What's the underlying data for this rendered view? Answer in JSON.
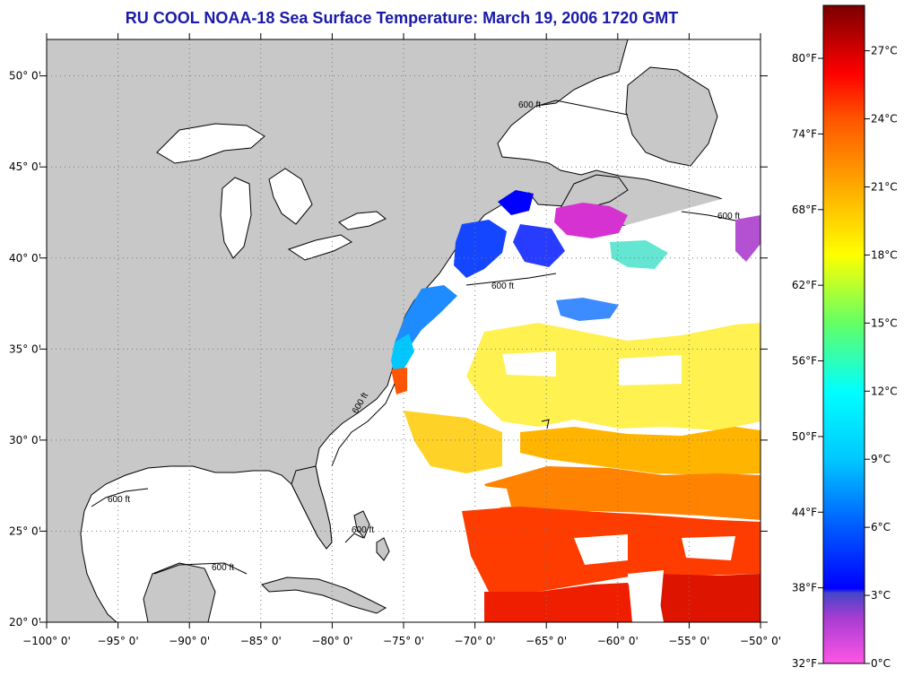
{
  "title": "RU COOL  NOAA-18  Sea Surface Temperature:  March 19, 2006 1720 GMT",
  "map": {
    "lon_range": [
      -100,
      -50
    ],
    "lat_range": [
      20,
      52
    ],
    "lon_ticks": [
      {
        "value": -100,
        "label": "−100° 0'"
      },
      {
        "value": -95,
        "label": "−95° 0'"
      },
      {
        "value": -90,
        "label": "−90° 0'"
      },
      {
        "value": -85,
        "label": "−85° 0'"
      },
      {
        "value": -80,
        "label": "−80° 0'"
      },
      {
        "value": -75,
        "label": "−75° 0'"
      },
      {
        "value": -70,
        "label": "−70° 0'"
      },
      {
        "value": -65,
        "label": "−65° 0'"
      },
      {
        "value": -60,
        "label": "−60° 0'"
      },
      {
        "value": -55,
        "label": "−55° 0'"
      },
      {
        "value": -50,
        "label": "−50° 0'"
      }
    ],
    "lat_ticks": [
      {
        "value": 20,
        "label": "20° 0'"
      },
      {
        "value": 25,
        "label": "25° 0'"
      },
      {
        "value": 30,
        "label": "30° 0'"
      },
      {
        "value": 35,
        "label": "35° 0'"
      },
      {
        "value": 40,
        "label": "40° 0'"
      },
      {
        "value": 45,
        "label": "45° 0'"
      },
      {
        "value": 50,
        "label": "50° 0'"
      }
    ],
    "isobath_labels": [
      "600 ft",
      "600 ft",
      "600 ft",
      "600 ft",
      "600 ft",
      "600 ft",
      "600 ft"
    ],
    "colors": {
      "land": "#c8c8c8",
      "ocean": "#ffffff",
      "grid": "#7a7a7a",
      "coast": "#000000"
    }
  },
  "colorbar": {
    "range_c": [
      0,
      29
    ],
    "stops": [
      {
        "c": 0,
        "color": "#ff55e6"
      },
      {
        "c": 2,
        "color": "#a83cd2"
      },
      {
        "c": 3.1,
        "color": "#4646c8"
      },
      {
        "c": 3.3,
        "color": "#0000ff"
      },
      {
        "c": 6,
        "color": "#005aff"
      },
      {
        "c": 9,
        "color": "#00c8ff"
      },
      {
        "c": 12,
        "color": "#00ffff"
      },
      {
        "c": 15,
        "color": "#64ff64"
      },
      {
        "c": 18,
        "color": "#ffff00"
      },
      {
        "c": 21,
        "color": "#ffaa00"
      },
      {
        "c": 24,
        "color": "#ff5500"
      },
      {
        "c": 26,
        "color": "#ff0000"
      },
      {
        "c": 29,
        "color": "#7a0000"
      }
    ],
    "celsius_ticks": [
      {
        "value": 0,
        "label": "0°C"
      },
      {
        "value": 3,
        "label": "3°C"
      },
      {
        "value": 6,
        "label": "6°C"
      },
      {
        "value": 9,
        "label": "9°C"
      },
      {
        "value": 12,
        "label": "12°C"
      },
      {
        "value": 15,
        "label": "15°C"
      },
      {
        "value": 18,
        "label": "18°C"
      },
      {
        "value": 21,
        "label": "21°C"
      },
      {
        "value": 24,
        "label": "24°C"
      },
      {
        "value": 27,
        "label": "27°C"
      }
    ],
    "fahrenheit_ticks": [
      {
        "value": 32,
        "label": "32°F"
      },
      {
        "value": 38,
        "label": "38°F"
      },
      {
        "value": 44,
        "label": "44°F"
      },
      {
        "value": 50,
        "label": "50°F"
      },
      {
        "value": 56,
        "label": "56°F"
      },
      {
        "value": 62,
        "label": "62°F"
      },
      {
        "value": 68,
        "label": "68°F"
      },
      {
        "value": 74,
        "label": "74°F"
      },
      {
        "value": 80,
        "label": "80°F"
      }
    ]
  }
}
